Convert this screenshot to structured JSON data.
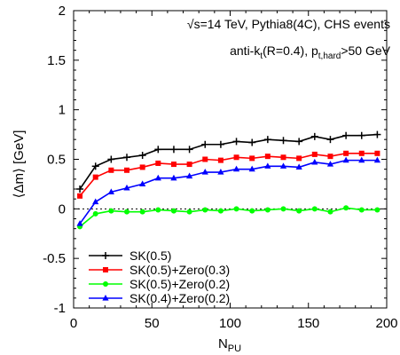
{
  "chart_data": {
    "type": "line",
    "xlabel": "N",
    "xlabel_sub": "PU",
    "ylabel": "⟨Δm⟩ [GeV]",
    "xlim": [
      0,
      200
    ],
    "ylim": [
      -1,
      2
    ],
    "x_ticks": [
      0,
      50,
      100,
      150,
      200
    ],
    "y_ticks": [
      -1,
      -0.5,
      0,
      0.5,
      1,
      1.5,
      2
    ],
    "x_tick_labels": [
      "0",
      "50",
      "100",
      "150",
      "200"
    ],
    "y_tick_labels": [
      "-1",
      "-0.5",
      "0",
      "0.5",
      "1",
      "1.5",
      "2"
    ],
    "grid": false,
    "zero_line": true,
    "legend_position": "bottom-left",
    "annotations": {
      "line1": "√s=14 TeV, Pythia8(4C), CHS events",
      "line2_a": "anti-k",
      "line2_a_sub": "t",
      "line2_b": "(R=0.4), p",
      "line2_b_sub": "t,hard",
      "line2_c": ">50 GeV"
    },
    "x": [
      4,
      14,
      24,
      34,
      44,
      54,
      64,
      74,
      84,
      94,
      104,
      114,
      124,
      134,
      144,
      154,
      164,
      174,
      184,
      194
    ],
    "series": [
      {
        "name": "SK(0.5)",
        "color": "#000000",
        "marker": "plus",
        "values": [
          0.2,
          0.43,
          0.5,
          0.52,
          0.54,
          0.6,
          0.6,
          0.6,
          0.65,
          0.65,
          0.68,
          0.67,
          0.7,
          0.69,
          0.68,
          0.73,
          0.7,
          0.74,
          0.74,
          0.75
        ]
      },
      {
        "name": "SK(0.5)+Zero(0.3)",
        "color": "#ff0000",
        "marker": "square",
        "values": [
          0.13,
          0.32,
          0.39,
          0.39,
          0.42,
          0.46,
          0.45,
          0.45,
          0.5,
          0.49,
          0.52,
          0.51,
          0.53,
          0.52,
          0.51,
          0.55,
          0.53,
          0.56,
          0.56,
          0.56
        ]
      },
      {
        "name": "SK(0.5)+Zero(0.2)",
        "color": "#00ff00",
        "marker": "circle",
        "values": [
          -0.18,
          -0.05,
          -0.02,
          -0.03,
          -0.03,
          -0.01,
          -0.02,
          -0.03,
          -0.01,
          -0.02,
          0.0,
          -0.02,
          -0.01,
          0.0,
          -0.02,
          0.0,
          -0.03,
          0.01,
          -0.01,
          -0.01
        ]
      },
      {
        "name": "SK(0.4)+Zero(0.2)",
        "color": "#0000ff",
        "marker": "triangle",
        "values": [
          -0.15,
          0.07,
          0.17,
          0.21,
          0.25,
          0.31,
          0.31,
          0.33,
          0.37,
          0.37,
          0.4,
          0.4,
          0.43,
          0.43,
          0.42,
          0.47,
          0.45,
          0.49,
          0.49,
          0.49
        ]
      }
    ]
  }
}
